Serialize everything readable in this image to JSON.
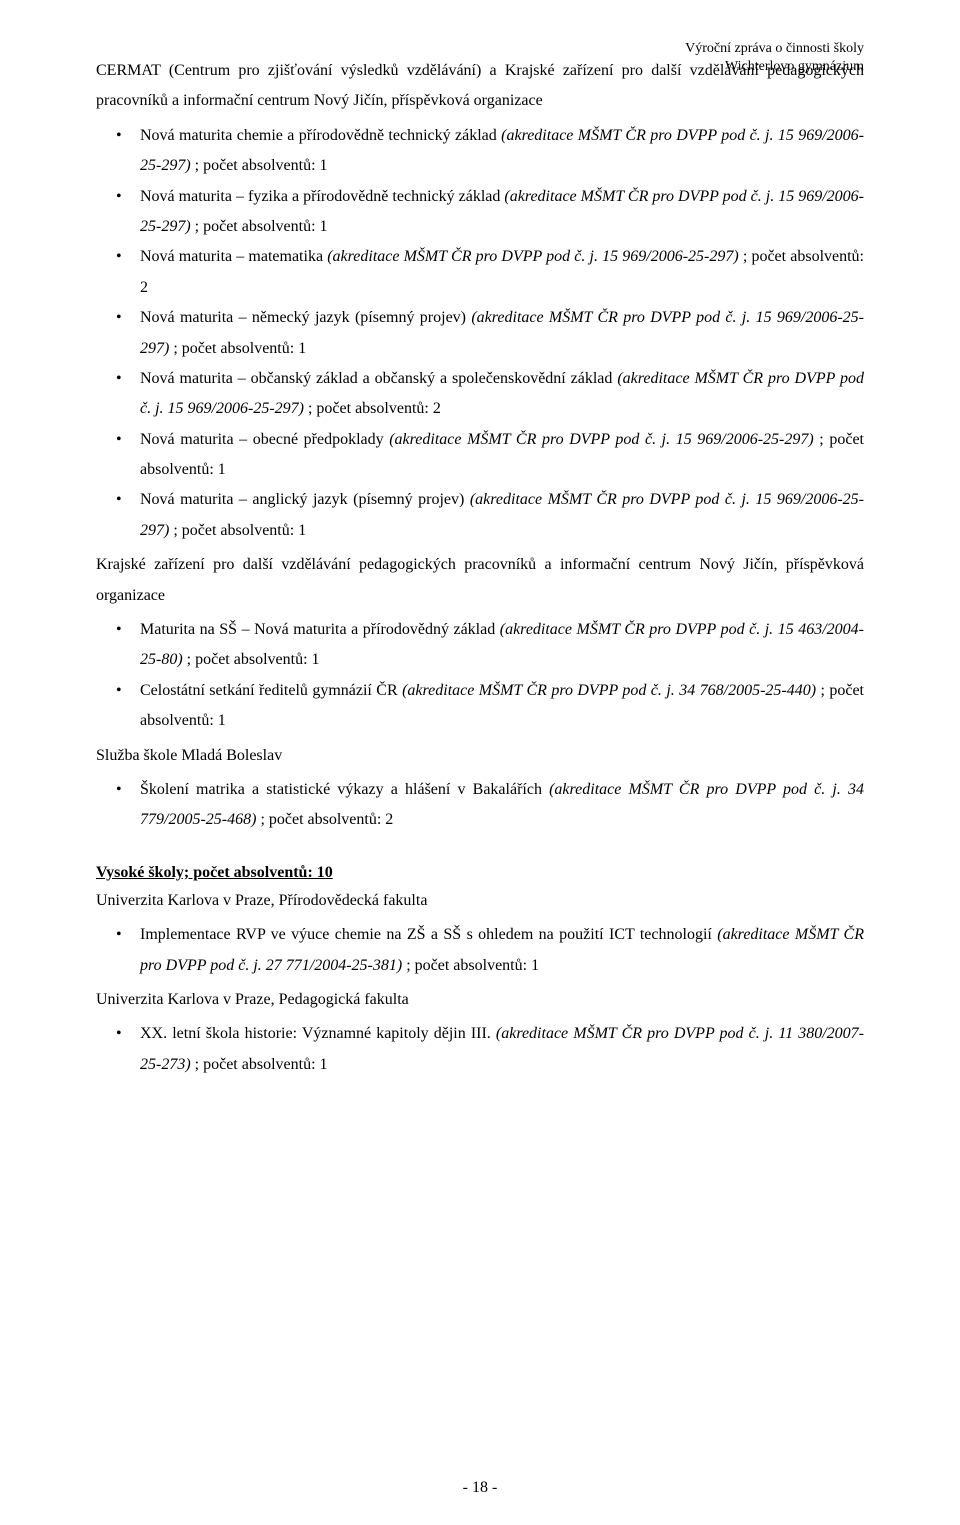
{
  "header": {
    "line1": "Výroční zpráva o činnosti školy",
    "line2": "Wichterlovo gymnázium"
  },
  "intro": {
    "p1": "CERMAT (Centrum pro zjišťování výsledků vzdělávání) a Krajské zařízení pro další vzdělávání pedagogických pracovníků a informační centrum Nový Jičín, příspěvková organizace"
  },
  "list1": [
    {
      "text": "Nová maturita chemie a přírodovědně technický základ ",
      "ital": "(akreditace MŠMT ČR pro DVPP pod č. j. 15 969/2006-25-297)",
      "tail": " ; počet absolventů: 1"
    },
    {
      "text": "Nová maturita – fyzika a přírodovědně technický základ ",
      "ital": "(akreditace MŠMT ČR pro DVPP pod č. j. 15 969/2006-25-297)",
      "tail": " ; počet absolventů: 1"
    },
    {
      "text": "Nová maturita – matematika ",
      "ital": "(akreditace MŠMT ČR pro DVPP pod č. j. 15 969/2006-25-297)",
      "tail": " ; počet absolventů: 2"
    },
    {
      "text": "Nová maturita – německý jazyk (písemný projev) ",
      "ital": "(akreditace MŠMT ČR pro DVPP pod č. j. 15 969/2006-25-297)",
      "tail": " ; počet absolventů: 1"
    },
    {
      "text": "Nová maturita – občanský základ a občanský a společenskovědní základ ",
      "ital": "(akreditace MŠMT ČR pro DVPP pod č. j. 15 969/2006-25-297)",
      "tail": " ; počet absolventů: 2"
    },
    {
      "text": "Nová maturita – obecné předpoklady ",
      "ital": "(akreditace MŠMT ČR pro DVPP pod č. j. 15 969/2006-25-297)",
      "tail": " ; počet absolventů: 1"
    },
    {
      "text": "Nová maturita – anglický jazyk (písemný projev) ",
      "ital": "(akreditace MŠMT ČR pro DVPP pod č. j. 15 969/2006-25-297)",
      "tail": " ; počet absolventů: 1"
    }
  ],
  "mid1": "Krajské zařízení pro další vzdělávání pedagogických pracovníků a informační centrum Nový Jičín, příspěvková organizace",
  "list2": [
    {
      "text": "Maturita na SŠ – Nová maturita a přírodovědný základ ",
      "ital": "(akreditace MŠMT ČR pro DVPP pod č. j. 15 463/2004-25-80)",
      "tail": " ; počet absolventů: 1"
    },
    {
      "text": "Celostátní setkání ředitelů gymnázií ČR ",
      "ital": "(akreditace MŠMT ČR pro DVPP pod č. j. 34 768/2005-25-440)",
      "tail": " ; počet absolventů: 1"
    }
  ],
  "mid2": "Služba škole Mladá Boleslav",
  "list3": [
    {
      "text": "Školení matrika a statistické výkazy a hlášení v Bakalářích ",
      "ital": "(akreditace MŠMT ČR pro DVPP pod č. j. 34 779/2005-25-468)",
      "tail": " ; počet absolventů: 2"
    }
  ],
  "section2": {
    "heading": "Vysoké školy; počet absolventů: 10",
    "sub1": "Univerzita Karlova v Praze, Přírodovědecká fakulta",
    "list_a": [
      {
        "text": "Implementace RVP ve výuce chemie na ZŠ a SŠ s ohledem na použití ICT technologií ",
        "ital": "(akreditace MŠMT ČR pro DVPP pod č. j. 27 771/2004-25-381)",
        "tail": " ; počet absolventů: 1"
      }
    ],
    "sub2": "Univerzita Karlova v Praze, Pedagogická fakulta",
    "list_b": [
      {
        "text": "XX. letní škola historie: Významné kapitoly dějin III. ",
        "ital": "(akreditace MŠMT ČR pro DVPP pod č. j. 11 380/2007-25-273)",
        "tail": " ; počet absolventů: 1"
      }
    ]
  },
  "footer": "- 18 -"
}
